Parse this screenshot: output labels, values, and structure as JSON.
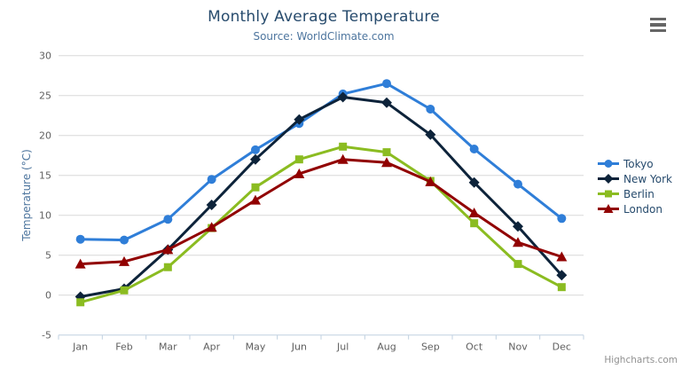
{
  "header": {
    "title": "Monthly Average Temperature",
    "subtitle": "Source: WorldClimate.com"
  },
  "credits": "Highcharts.com",
  "colors": {
    "title": "#274b6d",
    "subtitle": "#4d759e",
    "axis_title": "#4d759e",
    "tick_label": "#606060",
    "gridline": "#d8d8d8",
    "axis_line": "#c0d0e0",
    "legend_text": "#274b6d",
    "credits_text": "#909090",
    "menu_icon": "#666666"
  },
  "chart_data": {
    "type": "line",
    "title": "Monthly Average Temperature",
    "subtitle": "Source: WorldClimate.com",
    "xlabel": "",
    "ylabel": "Temperature (°C)",
    "categories": [
      "Jan",
      "Feb",
      "Mar",
      "Apr",
      "May",
      "Jun",
      "Jul",
      "Aug",
      "Sep",
      "Oct",
      "Nov",
      "Dec"
    ],
    "series": [
      {
        "name": "Tokyo",
        "color": "#2f7ed8",
        "marker": "circle",
        "values": [
          7.0,
          6.9,
          9.5,
          14.5,
          18.2,
          21.5,
          25.2,
          26.5,
          23.3,
          18.3,
          13.9,
          9.6
        ]
      },
      {
        "name": "New York",
        "color": "#0d233a",
        "marker": "diamond",
        "values": [
          -0.2,
          0.8,
          5.7,
          11.3,
          17.0,
          22.0,
          24.8,
          24.1,
          20.1,
          14.1,
          8.6,
          2.5
        ]
      },
      {
        "name": "Berlin",
        "color": "#8bbc21",
        "marker": "square",
        "values": [
          -0.9,
          0.6,
          3.5,
          8.4,
          13.5,
          17.0,
          18.6,
          17.9,
          14.3,
          9.0,
          3.9,
          1.0
        ]
      },
      {
        "name": "London",
        "color": "#910000",
        "marker": "triangle",
        "values": [
          3.9,
          4.2,
          5.7,
          8.5,
          11.9,
          15.2,
          17.0,
          16.6,
          14.2,
          10.3,
          6.6,
          4.8
        ]
      }
    ],
    "ylim": [
      -5,
      30
    ],
    "yticks": [
      -5,
      0,
      5,
      10,
      15,
      20,
      25,
      30
    ],
    "grid": true,
    "legend_position": "right"
  }
}
